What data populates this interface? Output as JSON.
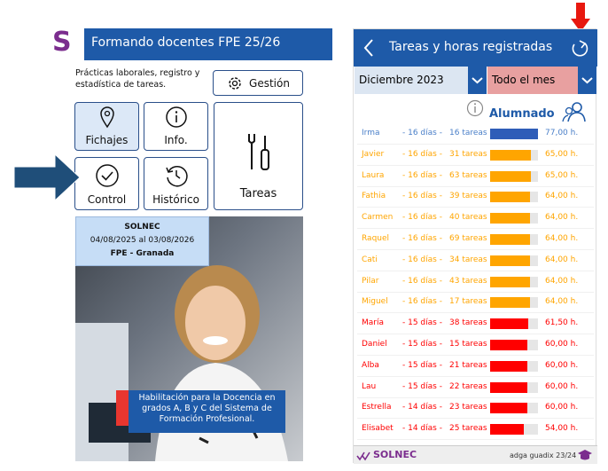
{
  "left_screen": {
    "logo": "S",
    "title": "Formando docentes FPE 25/26",
    "description": "Prácticas laborales, registro y estadística de tareas.",
    "buttons": {
      "gestion": "Gestión",
      "fichajes": "Fichajes",
      "info": "Info.",
      "control": "Control",
      "historico": "Histórico",
      "tareas": "Tareas"
    },
    "card": {
      "company": "SOLNEC",
      "dates": "04/08/2025 al 03/08/2026",
      "place": "FPE - Granada"
    },
    "caption": "Habilitación para la Docencia en grados A, B y C del Sistema de Formación Profesional."
  },
  "right_screen": {
    "title": "Tareas y horas registradas",
    "month": "Diciembre 2023",
    "period": "Todo el mes",
    "section": "Alumnado",
    "students": [
      {
        "name": "Irma",
        "days": "- 16 días -",
        "tasks": "16 tareas",
        "hours": 77,
        "hours_label": "77,00 h.",
        "color": "#2f5db8"
      },
      {
        "name": "Javier",
        "days": "- 16 días -",
        "tasks": "31 tareas",
        "hours": 65,
        "hours_label": "65,00 h.",
        "color": "#ffa500"
      },
      {
        "name": "Laura",
        "days": "- 16 días -",
        "tasks": "63 tareas",
        "hours": 65,
        "hours_label": "65,00 h.",
        "color": "#ffa500"
      },
      {
        "name": "Fathia",
        "days": "- 16 días -",
        "tasks": "39 tareas",
        "hours": 64,
        "hours_label": "64,00 h.",
        "color": "#ffa500"
      },
      {
        "name": "Carmen",
        "days": "- 16 días -",
        "tasks": "40 tareas",
        "hours": 64,
        "hours_label": "64,00 h.",
        "color": "#ffa500"
      },
      {
        "name": "Raquel",
        "days": "- 16 días -",
        "tasks": "69 tareas",
        "hours": 64,
        "hours_label": "64,00 h.",
        "color": "#ffa500"
      },
      {
        "name": "Cati",
        "days": "- 16 días -",
        "tasks": "34 tareas",
        "hours": 64,
        "hours_label": "64,00 h.",
        "color": "#ffa500"
      },
      {
        "name": "Pilar",
        "days": "- 16 días -",
        "tasks": "43 tareas",
        "hours": 64,
        "hours_label": "64,00 h.",
        "color": "#ffa500"
      },
      {
        "name": "Miguel",
        "days": "- 16 días -",
        "tasks": "17 tareas",
        "hours": 64,
        "hours_label": "64,00 h.",
        "color": "#ffa500"
      },
      {
        "name": "María",
        "days": "- 15 días -",
        "tasks": "38 tareas",
        "hours": 61.5,
        "hours_label": "61,50 h.",
        "color": "#ff0000"
      },
      {
        "name": "Daniel",
        "days": "- 15 días -",
        "tasks": "15 tareas",
        "hours": 60,
        "hours_label": "60,00 h.",
        "color": "#ff0000"
      },
      {
        "name": "Alba",
        "days": "- 15 días -",
        "tasks": "21 tareas",
        "hours": 60,
        "hours_label": "60,00 h.",
        "color": "#ff0000"
      },
      {
        "name": "Lau",
        "days": "- 15 días -",
        "tasks": "22 tareas",
        "hours": 60,
        "hours_label": "60,00 h.",
        "color": "#ff0000"
      },
      {
        "name": "Estrella",
        "days": "- 14 días -",
        "tasks": "23 tareas",
        "hours": 60,
        "hours_label": "60,00 h.",
        "color": "#ff0000"
      },
      {
        "name": "Elisabet",
        "days": "- 14 días -",
        "tasks": "25 tareas",
        "hours": 54,
        "hours_label": "54,00 h.",
        "color": "#ff0000"
      }
    ],
    "footer_brand": "SOLNEC",
    "footer_text": "adga guadix 23/24"
  }
}
